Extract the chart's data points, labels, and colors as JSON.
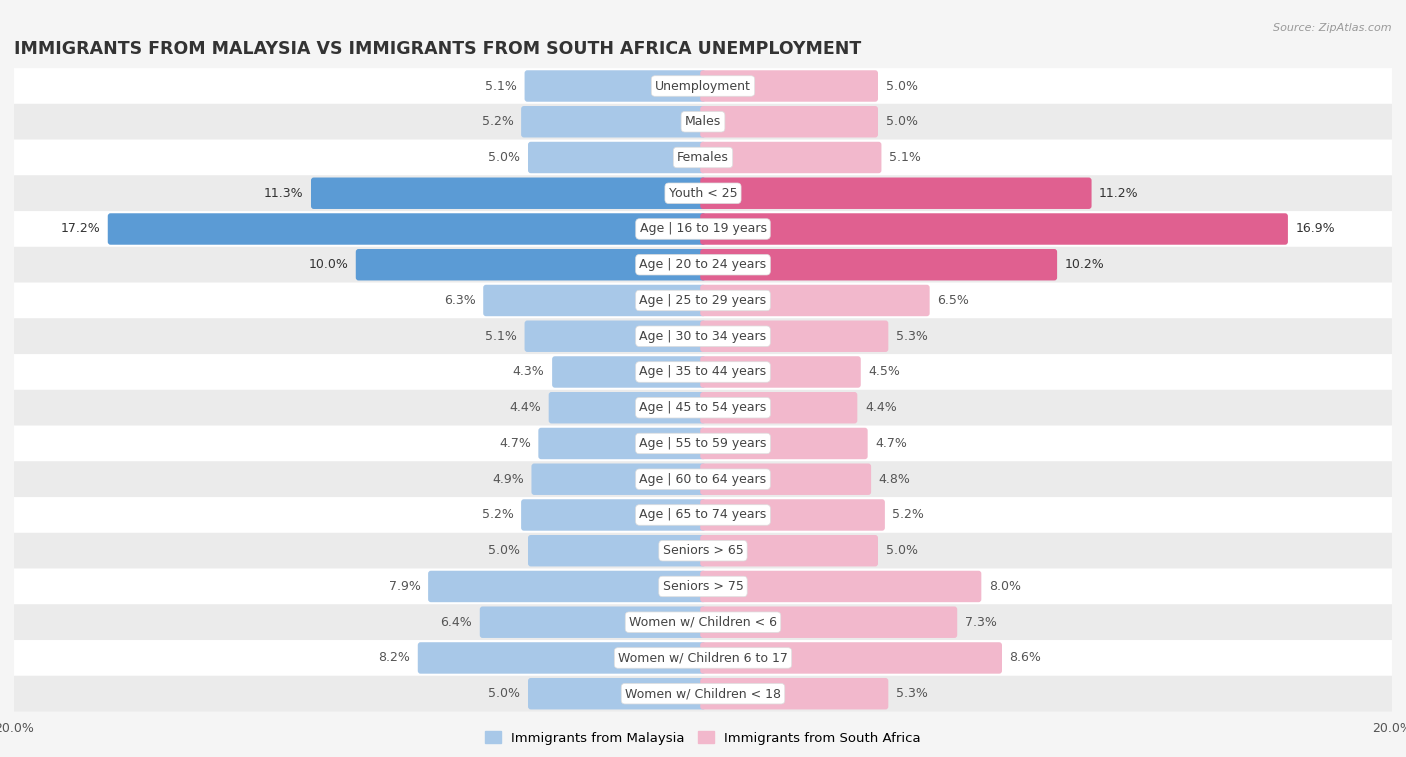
{
  "title": "IMMIGRANTS FROM MALAYSIA VS IMMIGRANTS FROM SOUTH AFRICA UNEMPLOYMENT",
  "source": "Source: ZipAtlas.com",
  "categories": [
    "Unemployment",
    "Males",
    "Females",
    "Youth < 25",
    "Age | 16 to 19 years",
    "Age | 20 to 24 years",
    "Age | 25 to 29 years",
    "Age | 30 to 34 years",
    "Age | 35 to 44 years",
    "Age | 45 to 54 years",
    "Age | 55 to 59 years",
    "Age | 60 to 64 years",
    "Age | 65 to 74 years",
    "Seniors > 65",
    "Seniors > 75",
    "Women w/ Children < 6",
    "Women w/ Children 6 to 17",
    "Women w/ Children < 18"
  ],
  "malaysia_values": [
    5.1,
    5.2,
    5.0,
    11.3,
    17.2,
    10.0,
    6.3,
    5.1,
    4.3,
    4.4,
    4.7,
    4.9,
    5.2,
    5.0,
    7.9,
    6.4,
    8.2,
    5.0
  ],
  "south_africa_values": [
    5.0,
    5.0,
    5.1,
    11.2,
    16.9,
    10.2,
    6.5,
    5.3,
    4.5,
    4.4,
    4.7,
    4.8,
    5.2,
    5.0,
    8.0,
    7.3,
    8.6,
    5.3
  ],
  "malaysia_color_normal": "#a8c8e8",
  "malaysia_color_highlight": "#5b9bd5",
  "south_africa_color_normal": "#f2b8cc",
  "south_africa_color_highlight": "#e06090",
  "highlight_rows": [
    3,
    4,
    5
  ],
  "xlim": 20.0,
  "background_color": "#f5f5f5",
  "row_colors": [
    "#ffffff",
    "#ebebeb"
  ],
  "title_fontsize": 12.5,
  "label_fontsize": 9,
  "value_fontsize": 9,
  "legend_label_malaysia": "Immigrants from Malaysia",
  "legend_label_sa": "Immigrants from South Africa"
}
